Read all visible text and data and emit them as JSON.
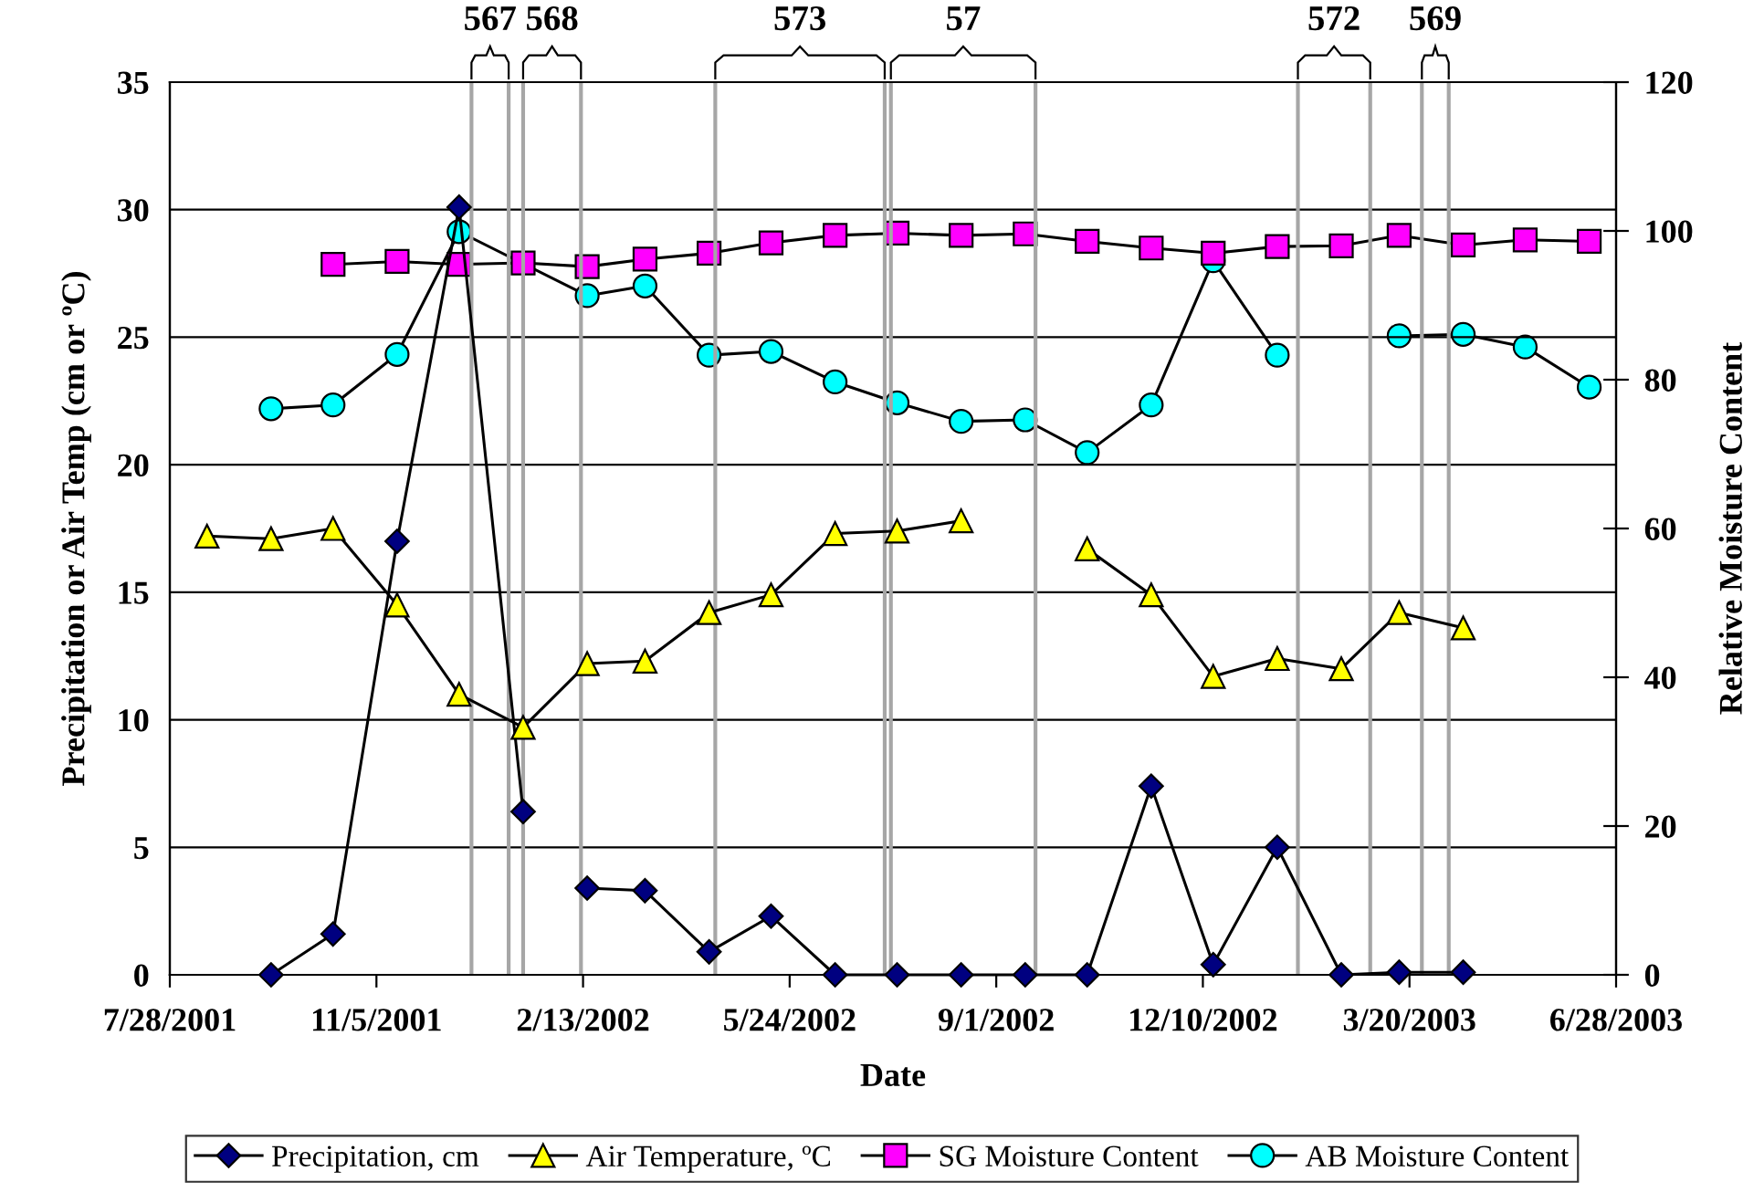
{
  "chart_data": {
    "type": "line",
    "xlabel": "Date",
    "ylabel": "Precipitation or Air Temp (cm or ºC)",
    "y2label": "Relative Moisture Content",
    "xlim": [
      "2001-07-28",
      "2003-06-28"
    ],
    "xticks": [
      {
        "value": "2001-07-28",
        "label": "7/28/2001"
      },
      {
        "value": "2001-11-05",
        "label": "11/5/2001"
      },
      {
        "value": "2002-02-13",
        "label": "2/13/2002"
      },
      {
        "value": "2002-05-24",
        "label": "5/24/2002"
      },
      {
        "value": "2002-09-01",
        "label": "9/1/2002"
      },
      {
        "value": "2002-12-10",
        "label": "12/10/2002"
      },
      {
        "value": "2003-03-20",
        "label": "3/20/2003"
      },
      {
        "value": "2003-06-28",
        "label": "6/28/2003"
      }
    ],
    "ylim": [
      0,
      35
    ],
    "yticks": [
      0,
      5,
      10,
      15,
      20,
      25,
      30,
      35
    ],
    "y2lim": [
      0,
      120
    ],
    "y2ticks": [
      0,
      20,
      40,
      60,
      80,
      100,
      120
    ],
    "grid": "y",
    "legend": "bottom",
    "series": [
      {
        "name": "Precipitation, cm",
        "color": "#000080",
        "marker": "diamond",
        "x": [
          "2001-09-15",
          "2001-10-15",
          "2001-11-15",
          "2001-12-15",
          "2002-01-15",
          "2002-02-01",
          "2002-02-15",
          "2002-03-15",
          "2002-04-15",
          "2002-05-15",
          "2002-06-15",
          "2002-07-15",
          "2002-08-15",
          "2002-09-15",
          "2002-10-15",
          "2002-11-15",
          "2002-12-15",
          "2003-01-15",
          "2003-02-15",
          "2003-03-15",
          "2003-04-15"
        ],
        "values": [
          0,
          1.6,
          17.0,
          30.1,
          6.4,
          null,
          3.4,
          3.3,
          0.9,
          2.3,
          0,
          0,
          0,
          0,
          0,
          7.4,
          0.4,
          5.0,
          0,
          0.1,
          0.1
        ]
      },
      {
        "name": "Air Temperature, ºC",
        "color": "#ffff00",
        "marker": "triangle",
        "x": [
          "2001-08-15",
          "2001-09-15",
          "2001-10-15",
          "2001-11-15",
          "2001-12-15",
          "2002-01-15",
          "2002-02-15",
          "2002-03-15",
          "2002-04-15",
          "2002-05-15",
          "2002-06-15",
          "2002-07-15",
          "2002-08-15",
          "2002-09-15",
          "2002-10-15",
          "2002-11-15",
          "2002-12-15",
          "2003-01-15",
          "2003-02-15",
          "2003-03-15",
          "2003-04-15"
        ],
        "values": [
          17.2,
          17.1,
          17.5,
          14.5,
          11.0,
          9.7,
          12.2,
          12.3,
          14.2,
          14.9,
          17.3,
          17.4,
          17.8,
          null,
          16.7,
          14.9,
          11.7,
          12.4,
          12.0,
          14.2,
          13.6
        ]
      },
      {
        "name": "SG Moisture Content",
        "color": "#ff00ff",
        "marker": "square",
        "axis": "y2",
        "x": [
          "2001-10-15",
          "2001-11-15",
          "2001-12-15",
          "2002-01-15",
          "2002-02-15",
          "2002-03-15",
          "2002-04-15",
          "2002-05-15",
          "2002-06-15",
          "2002-07-15",
          "2002-08-15",
          "2002-09-15",
          "2002-10-15",
          "2002-11-15",
          "2002-12-15",
          "2003-01-15",
          "2003-02-15",
          "2003-03-15",
          "2003-04-15",
          "2003-05-15",
          "2003-06-15"
        ],
        "values": [
          95.5,
          95.9,
          95.5,
          95.7,
          95.2,
          96.2,
          97.0,
          98.4,
          99.4,
          99.7,
          99.4,
          99.6,
          98.6,
          97.7,
          97.0,
          97.9,
          98.0,
          99.4,
          98.1,
          98.8,
          98.6
        ]
      },
      {
        "name": "AB Moisture Content",
        "color": "#00ffff",
        "marker": "circle",
        "axis": "y2",
        "x": [
          "2001-09-15",
          "2001-10-15",
          "2001-11-15",
          "2001-12-15",
          "2002-02-15",
          "2002-03-15",
          "2002-04-15",
          "2002-05-15",
          "2002-06-15",
          "2002-07-15",
          "2002-08-15",
          "2002-09-15",
          "2002-10-15",
          "2002-11-15",
          "2002-12-15",
          "2003-01-15",
          "2003-02-15",
          "2003-03-15",
          "2003-04-15",
          "2003-05-15",
          "2003-06-15"
        ],
        "values": [
          76.1,
          76.6,
          83.4,
          99.9,
          91.3,
          92.6,
          83.3,
          83.8,
          79.7,
          76.9,
          74.4,
          74.6,
          70.2,
          76.6,
          96.0,
          83.3,
          null,
          85.9,
          86.1,
          84.4,
          79.0
        ]
      }
    ],
    "ref_lines": [
      {
        "axis": "x",
        "value": "2001-12-21",
        "label": "567",
        "color": "#a6a6a6"
      },
      {
        "axis": "x",
        "value": "2002-01-08",
        "color": "#a6a6a6"
      },
      {
        "axis": "x",
        "value": "2002-01-15",
        "label": "568",
        "color": "#a6a6a6"
      },
      {
        "axis": "x",
        "value": "2002-02-12",
        "color": "#a6a6a6"
      },
      {
        "axis": "x",
        "value": "2002-04-18",
        "label": "573",
        "color": "#a6a6a6"
      },
      {
        "axis": "x",
        "value": "2002-07-09",
        "color": "#a6a6a6"
      },
      {
        "axis": "x",
        "value": "2002-07-12",
        "label": "57",
        "color": "#a6a6a6"
      },
      {
        "axis": "x",
        "value": "2002-09-20",
        "color": "#a6a6a6"
      },
      {
        "axis": "x",
        "value": "2003-01-25",
        "label": "572",
        "color": "#a6a6a6"
      },
      {
        "axis": "x",
        "value": "2003-03-01",
        "color": "#a6a6a6"
      },
      {
        "axis": "x",
        "value": "2003-03-26",
        "label": "569",
        "color": "#a6a6a6"
      },
      {
        "axis": "x",
        "value": "2003-04-08",
        "color": "#a6a6a6"
      }
    ]
  }
}
